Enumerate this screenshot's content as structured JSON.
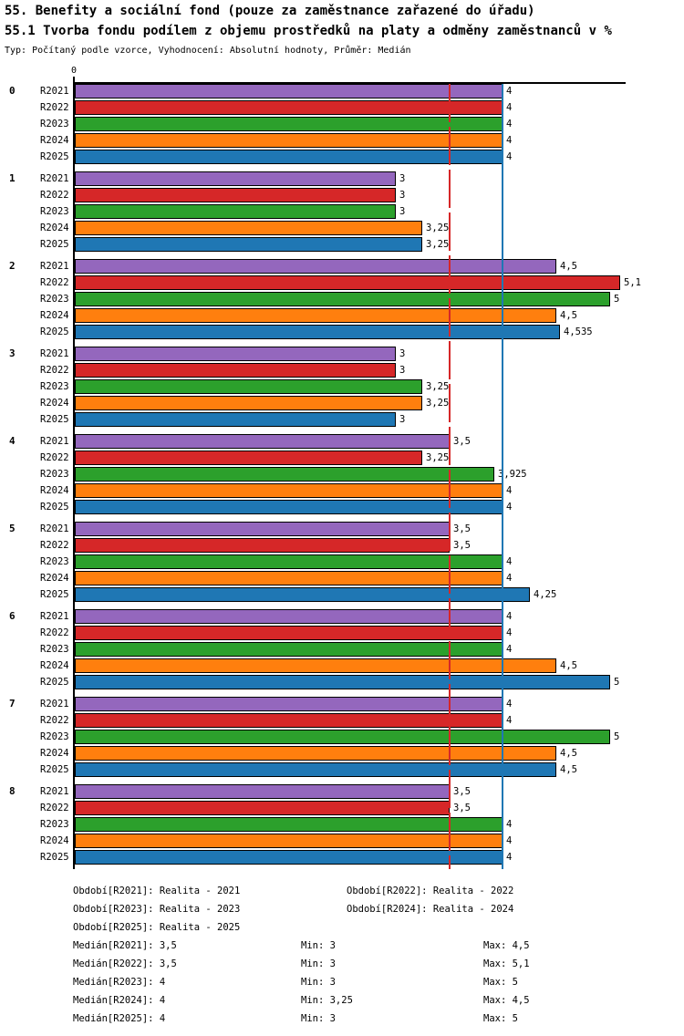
{
  "header": {
    "title": "55. Benefity a sociální fond (pouze za zaměstnance zařazené do úřadu)",
    "subtitle": "55.1 Tvorba fondu podílem z objemu prostředků na platy a odměny zaměstnanců v %",
    "meta": "Typ: Počítaný podle vzorce, Vyhodnocení: Absolutní hodnoty, Průměr: Medián"
  },
  "axis": {
    "zero_label": "0"
  },
  "colors": {
    "R2021": "#9467bd",
    "R2022": "#d62728",
    "R2023": "#2ca02c",
    "R2024": "#ff7f0e",
    "R2025": "#1f77b4"
  },
  "chart_data": {
    "type": "bar",
    "orientation": "horizontal",
    "xlim": [
      0,
      5.15
    ],
    "grid": false,
    "series_years": [
      "R2021",
      "R2022",
      "R2023",
      "R2024",
      "R2025"
    ],
    "categories": [
      "0",
      "1",
      "2",
      "3",
      "4",
      "5",
      "6",
      "7",
      "8"
    ],
    "groups": [
      {
        "label": "0",
        "values": [
          4,
          4,
          4,
          4,
          4
        ],
        "value_labels": [
          "4",
          "4",
          "4",
          "4",
          "4"
        ]
      },
      {
        "label": "1",
        "values": [
          3,
          3,
          3,
          3.25,
          3.25
        ],
        "value_labels": [
          "3",
          "3",
          "3",
          "3,25",
          "3,25"
        ]
      },
      {
        "label": "2",
        "values": [
          4.5,
          5.1,
          5,
          4.5,
          4.535
        ],
        "value_labels": [
          "4,5",
          "5,1",
          "5",
          "4,5",
          "4,535"
        ]
      },
      {
        "label": "3",
        "values": [
          3,
          3,
          3.25,
          3.25,
          3
        ],
        "value_labels": [
          "3",
          "3",
          "3,25",
          "3,25",
          "3"
        ]
      },
      {
        "label": "4",
        "values": [
          3.5,
          3.25,
          3.925,
          4,
          4
        ],
        "value_labels": [
          "3,5",
          "3,25",
          "3,925",
          "4",
          "4"
        ]
      },
      {
        "label": "5",
        "values": [
          3.5,
          3.5,
          4,
          4,
          4.25
        ],
        "value_labels": [
          "3,5",
          "3,5",
          "4",
          "4",
          "4,25"
        ]
      },
      {
        "label": "6",
        "values": [
          4,
          4,
          4,
          4.5,
          5
        ],
        "value_labels": [
          "4",
          "4",
          "4",
          "4,5",
          "5"
        ]
      },
      {
        "label": "7",
        "values": [
          4,
          4,
          5,
          4.5,
          4.5
        ],
        "value_labels": [
          "4",
          "4",
          "5",
          "4,5",
          "4,5"
        ]
      },
      {
        "label": "8",
        "values": [
          3.5,
          3.5,
          4,
          4,
          4
        ],
        "value_labels": [
          "3,5",
          "3,5",
          "4",
          "4",
          "4"
        ]
      }
    ],
    "reference_lines": [
      {
        "value": 3.5,
        "color": "#d62728",
        "style": "dashed",
        "meaning": "Medián R2021/R2022"
      },
      {
        "value": 4,
        "color": "#1f77b4",
        "style": "solid",
        "meaning": "Medián R2023/R2024/R2025"
      }
    ]
  },
  "legend": {
    "period_rows": [
      {
        "left": "Období[R2021]: Realita - 2021",
        "right": "Období[R2022]: Realita - 2022"
      },
      {
        "left": "Období[R2023]: Realita - 2023",
        "right": "Období[R2024]: Realita - 2024"
      },
      {
        "left": "Období[R2025]: Realita - 2025",
        "right": ""
      }
    ],
    "stat_rows": [
      {
        "median": "Medián[R2021]: 3,5",
        "min": "Min: 3",
        "max": "Max: 4,5"
      },
      {
        "median": "Medián[R2022]: 3,5",
        "min": "Min: 3",
        "max": "Max: 5,1"
      },
      {
        "median": "Medián[R2023]: 4",
        "min": "Min: 3",
        "max": "Max: 5"
      },
      {
        "median": "Medián[R2024]: 4",
        "min": "Min: 3,25",
        "max": "Max: 4,5"
      },
      {
        "median": "Medián[R2025]: 4",
        "min": "Min: 3",
        "max": "Max: 5"
      }
    ]
  }
}
